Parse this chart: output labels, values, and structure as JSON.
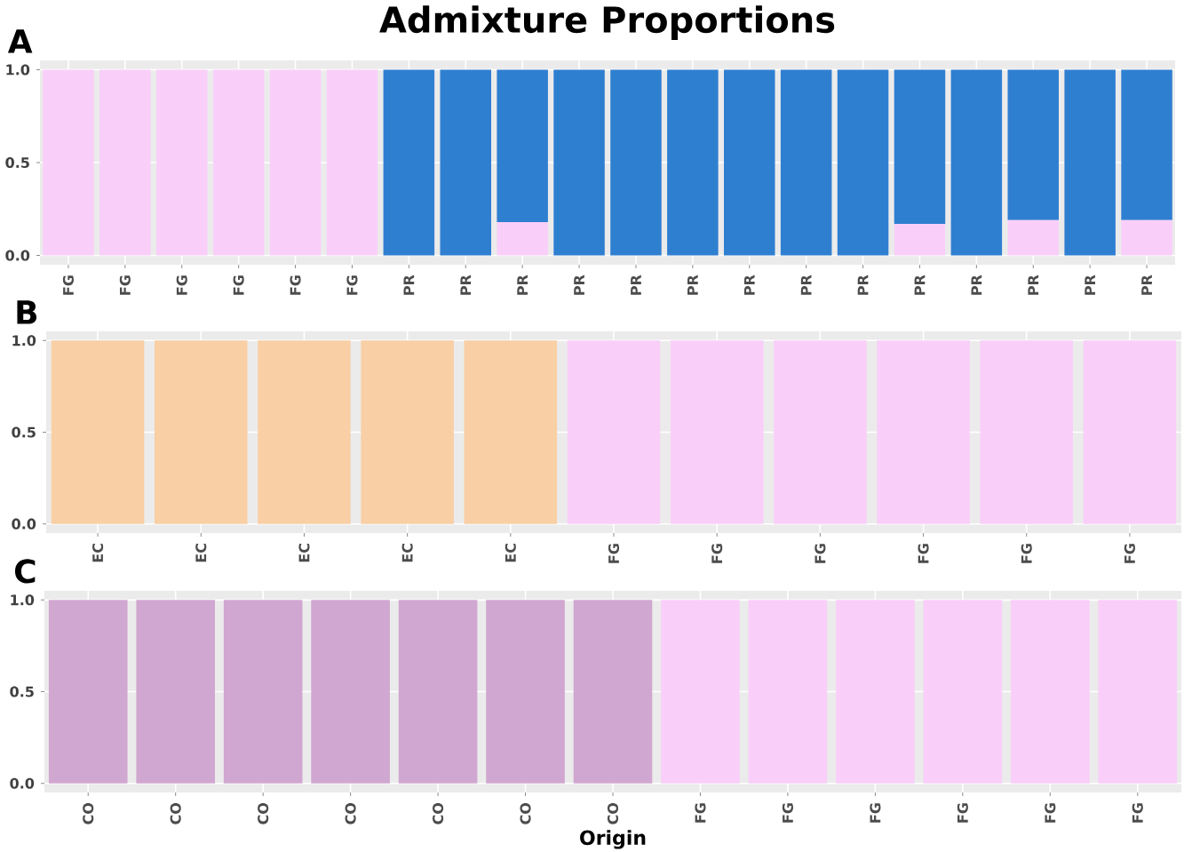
{
  "chart_data": [
    {
      "type": "bar",
      "title": "Admixture Proportions",
      "annotations": [
        "A"
      ],
      "stacked": true,
      "grid": true,
      "categories": [
        "FG",
        "FG",
        "FG",
        "FG",
        "FG",
        "FG",
        "PR",
        "PR",
        "PR",
        "PR",
        "PR",
        "PR",
        "PR",
        "PR",
        "PR",
        "PR",
        "PR",
        "PR",
        "PR",
        "PR"
      ],
      "series": [
        {
          "color": "#f9cff9",
          "values": [
            1,
            1,
            1,
            1,
            1,
            1,
            0,
            0,
            0.18,
            0,
            0,
            0,
            0,
            0,
            0,
            0.17,
            0,
            0.19,
            0,
            0.19
          ]
        },
        {
          "color": "#2f7fd1",
          "values": [
            0,
            0,
            0,
            0,
            0,
            0,
            1,
            1,
            0.82,
            1,
            1,
            1,
            1,
            1,
            1,
            0.83,
            1,
            0.81,
            1,
            0.81
          ]
        }
      ],
      "ylim": [
        -0.05,
        1.05
      ],
      "yticks": [
        {
          "value": 0,
          "label": "0.0"
        },
        {
          "value": 0.5,
          "label": "0.5"
        },
        {
          "value": 1,
          "label": "1.0"
        }
      ]
    },
    {
      "type": "bar",
      "annotations": [
        "B"
      ],
      "stacked": true,
      "grid": true,
      "categories": [
        "EC",
        "EC",
        "EC",
        "EC",
        "EC",
        "FG",
        "FG",
        "FG",
        "FG",
        "FG",
        "FG"
      ],
      "series": [
        {
          "color": "#f9cfa5",
          "values": [
            1,
            1,
            1,
            1,
            1,
            0,
            0,
            0,
            0,
            0,
            0
          ]
        },
        {
          "color": "#f9cff9",
          "values": [
            0,
            0,
            0,
            0,
            0,
            1,
            1,
            1,
            1,
            1,
            1
          ]
        }
      ],
      "ylim": [
        -0.05,
        1.05
      ],
      "yticks": [
        {
          "value": 0,
          "label": "0.0"
        },
        {
          "value": 0.5,
          "label": "0.5"
        },
        {
          "value": 1,
          "label": "1.0"
        }
      ]
    },
    {
      "type": "bar",
      "annotations": [
        "C"
      ],
      "xlabel": "Origin",
      "stacked": true,
      "grid": true,
      "categories": [
        "CO",
        "CO",
        "CO",
        "CO",
        "CO",
        "CO",
        "CO",
        "FG",
        "FG",
        "FG",
        "FG",
        "FG",
        "FG"
      ],
      "series": [
        {
          "color": "#d0a7d0",
          "values": [
            1,
            1,
            1,
            1,
            1,
            1,
            1,
            0,
            0,
            0,
            0,
            0,
            0
          ]
        },
        {
          "color": "#f9cff9",
          "values": [
            0,
            0,
            0,
            0,
            0,
            0,
            0,
            1,
            1,
            1,
            1,
            1,
            1
          ]
        }
      ],
      "ylim": [
        -0.05,
        1.05
      ],
      "yticks": [
        {
          "value": 0,
          "label": "0.0"
        },
        {
          "value": 0.5,
          "label": "0.5"
        },
        {
          "value": 1,
          "label": "1.0"
        }
      ]
    }
  ]
}
